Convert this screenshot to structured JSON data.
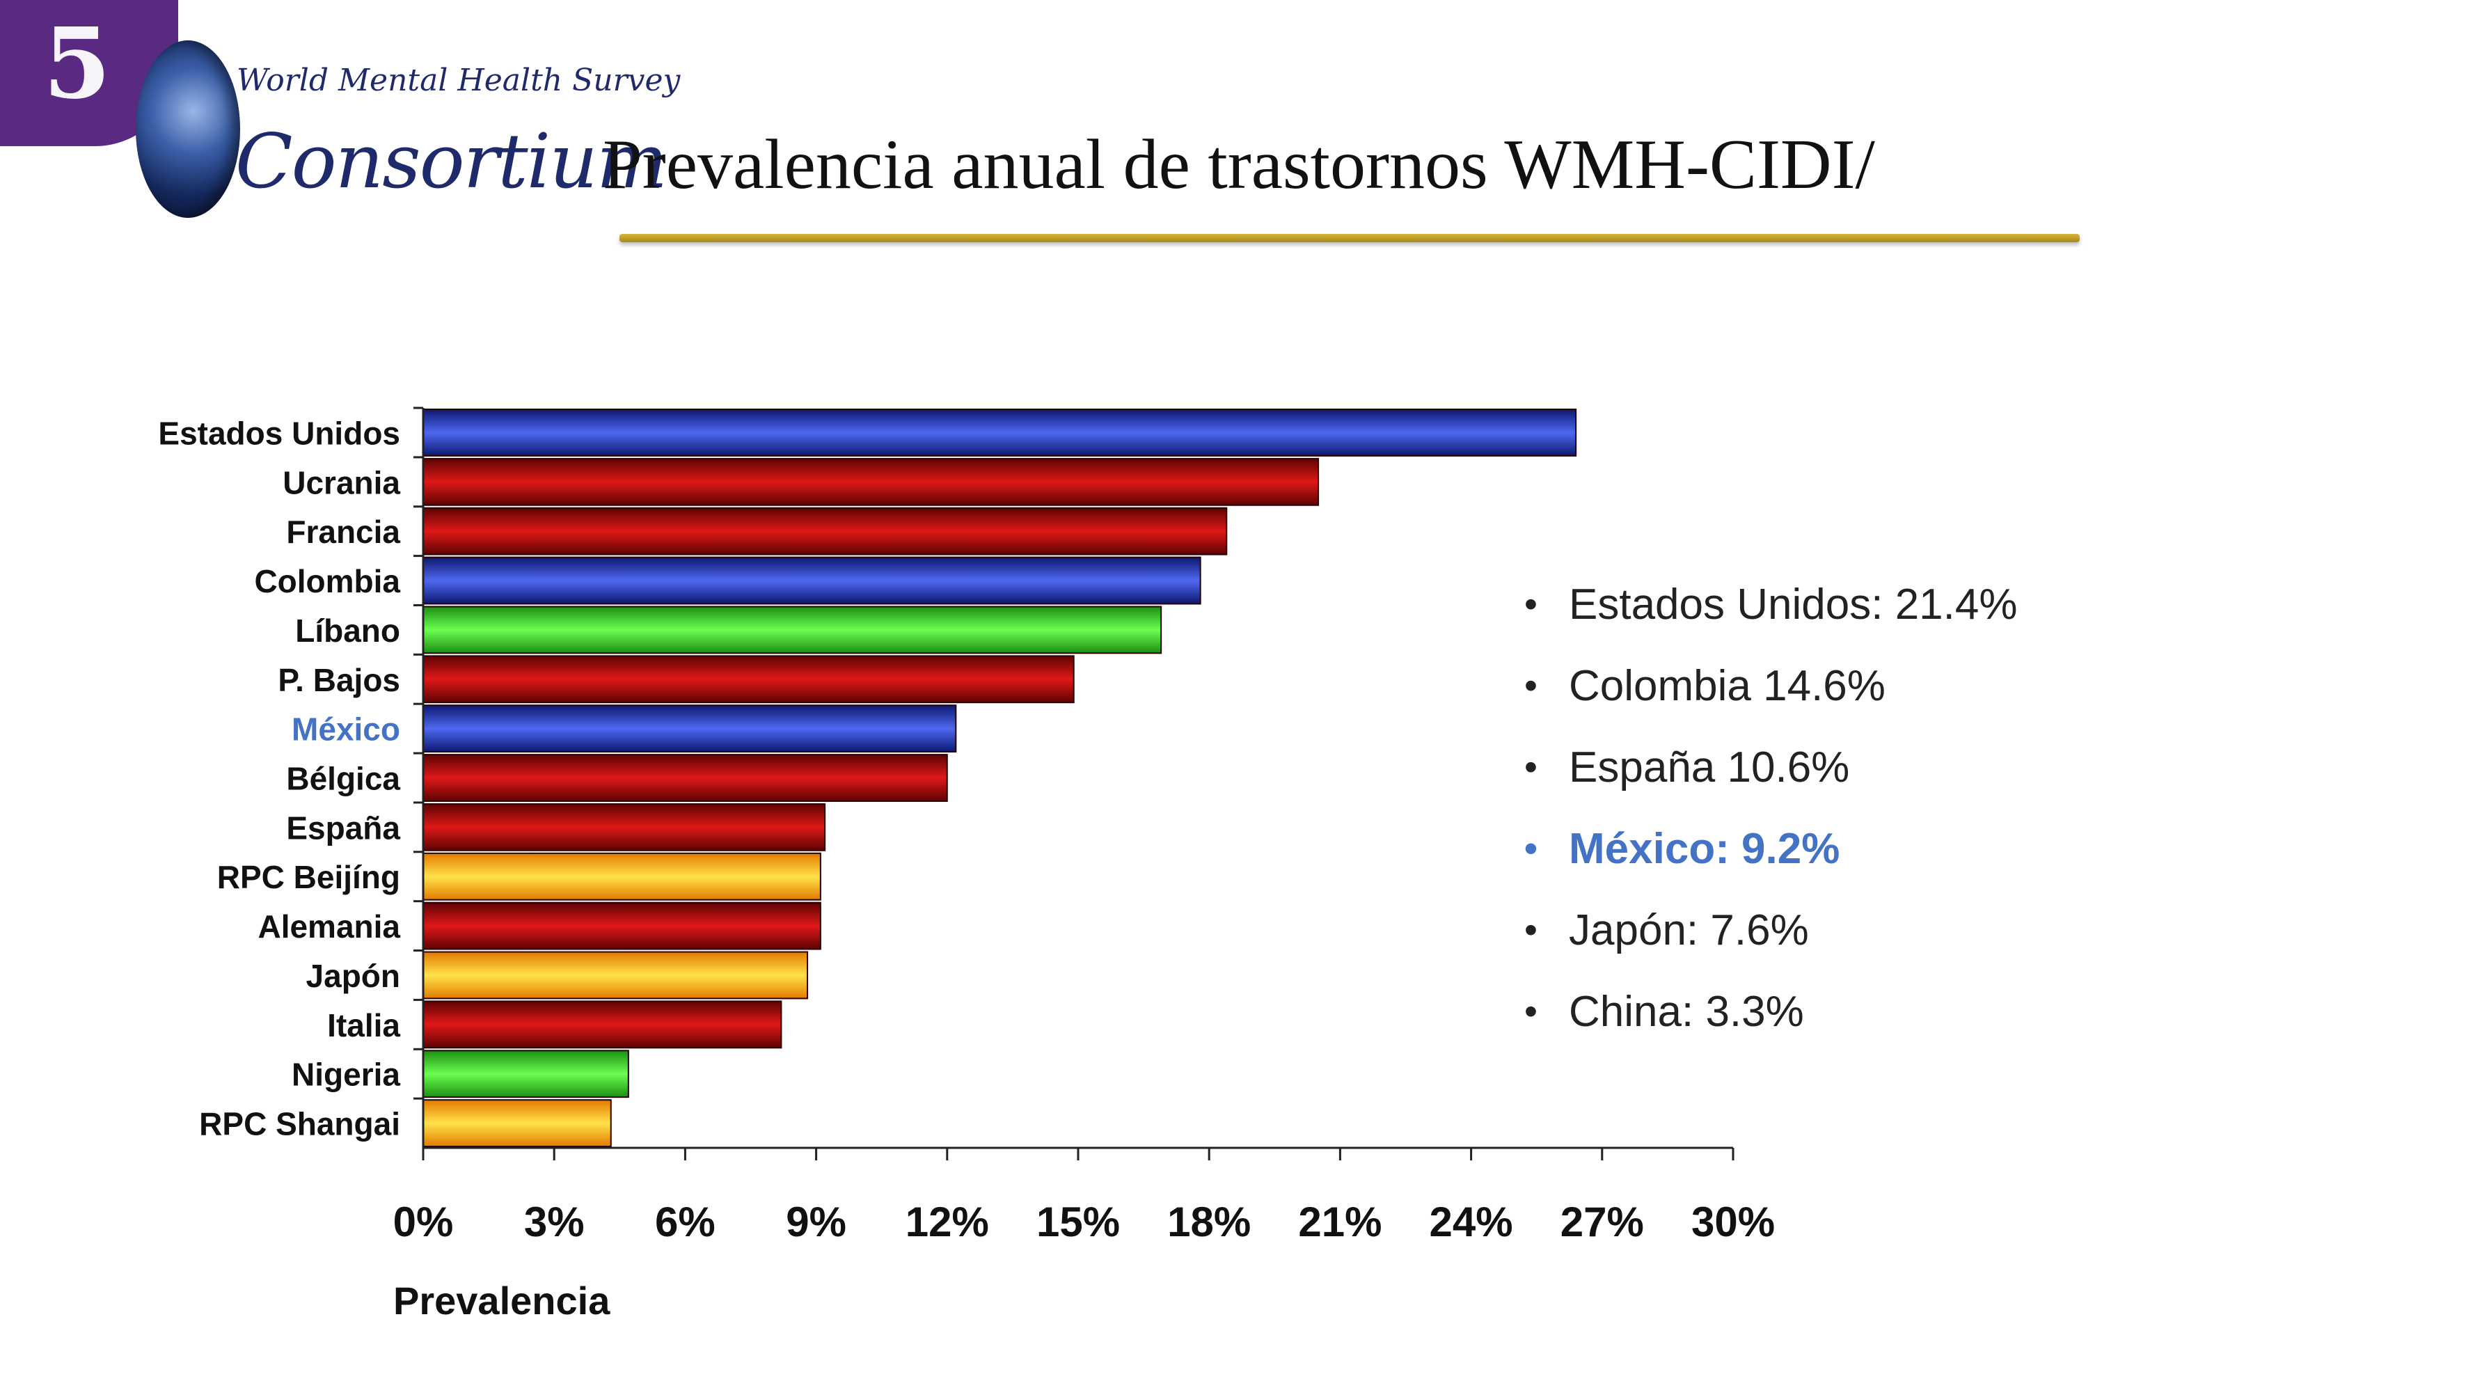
{
  "logo": {
    "badge_text": "5",
    "brand_small": "World Mental Health Survey",
    "brand_large": "Consortium"
  },
  "title": "Prevalencia anual de trastornos WMH-CIDI/",
  "colors": {
    "blue": "#1a2a9e",
    "red": "#a30a0a",
    "green": "#34d22a",
    "orange": "#f2a10e",
    "highlight": "#4472c4",
    "title_rule": "#c9a227"
  },
  "chart_data": {
    "type": "bar",
    "orientation": "horizontal",
    "categories": [
      "Estados Unidos",
      "Ucrania",
      "Francia",
      "Colombia",
      "Líbano",
      "P. Bajos",
      "México",
      "Bélgica",
      "España",
      "RPC Beijíng",
      "Alemania",
      "Japón",
      "Italia",
      "Nigeria",
      "RPC Shangai"
    ],
    "values": [
      26.4,
      20.5,
      18.4,
      17.8,
      16.9,
      14.9,
      12.2,
      12.0,
      9.2,
      9.1,
      9.1,
      8.8,
      8.2,
      4.7,
      4.3
    ],
    "bar_colors": [
      "blue",
      "red",
      "red",
      "blue",
      "green",
      "red",
      "blue",
      "red",
      "red",
      "orange",
      "red",
      "orange",
      "red",
      "green",
      "orange"
    ],
    "highlight_category": "México",
    "xlim": [
      0,
      30
    ],
    "xticks": [
      "0%",
      "3%",
      "6%",
      "9%",
      "12%",
      "15%",
      "18%",
      "21%",
      "24%",
      "27%",
      "30%"
    ],
    "xlabel": "Prevalencia",
    "grid": false
  },
  "legend_items": [
    {
      "text": "Estados Unidos: 21.4%",
      "highlight": false
    },
    {
      "text": "Colombia 14.6%",
      "highlight": false
    },
    {
      "text": "España 10.6%",
      "highlight": false
    },
    {
      "text": "México: 9.2%",
      "highlight": true
    },
    {
      "text": "Japón: 7.6%",
      "highlight": false
    },
    {
      "text": "China: 3.3%",
      "highlight": false
    }
  ]
}
